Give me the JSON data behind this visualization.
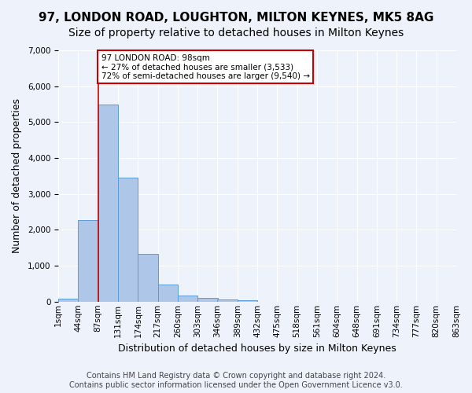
{
  "title": "97, LONDON ROAD, LOUGHTON, MILTON KEYNES, MK5 8AG",
  "subtitle": "Size of property relative to detached houses in Milton Keynes",
  "xlabel": "Distribution of detached houses by size in Milton Keynes",
  "ylabel": "Number of detached properties",
  "footer_line1": "Contains HM Land Registry data © Crown copyright and database right 2024.",
  "footer_line2": "Contains public sector information licensed under the Open Government Licence v3.0.",
  "bin_labels": [
    "1sqm",
    "44sqm",
    "87sqm",
    "131sqm",
    "174sqm",
    "217sqm",
    "260sqm",
    "303sqm",
    "346sqm",
    "389sqm",
    "432sqm",
    "475sqm",
    "518sqm",
    "561sqm",
    "604sqm",
    "648sqm",
    "691sqm",
    "734sqm",
    "777sqm",
    "820sqm",
    "863sqm"
  ],
  "bar_values": [
    80,
    2280,
    5480,
    3450,
    1320,
    470,
    165,
    100,
    70,
    40,
    0,
    0,
    0,
    0,
    0,
    0,
    0,
    0,
    0,
    0
  ],
  "bar_color": "#aec6e8",
  "bar_edge_color": "#5b9bd5",
  "annotation_text": "97 LONDON ROAD: 98sqm\n← 27% of detached houses are smaller (3,533)\n72% of semi-detached houses are larger (9,540) →",
  "annotation_box_color": "#ffffff",
  "annotation_box_edge": "#cc0000",
  "redline_x": 2,
  "ylim": [
    0,
    7000
  ],
  "yticks": [
    0,
    1000,
    2000,
    3000,
    4000,
    5000,
    6000,
    7000
  ],
  "bg_color": "#eef3fb",
  "plot_bg_color": "#eef3fb",
  "grid_color": "#ffffff",
  "title_fontsize": 11,
  "subtitle_fontsize": 10,
  "xlabel_fontsize": 9,
  "ylabel_fontsize": 9,
  "tick_fontsize": 7.5,
  "footer_fontsize": 7
}
